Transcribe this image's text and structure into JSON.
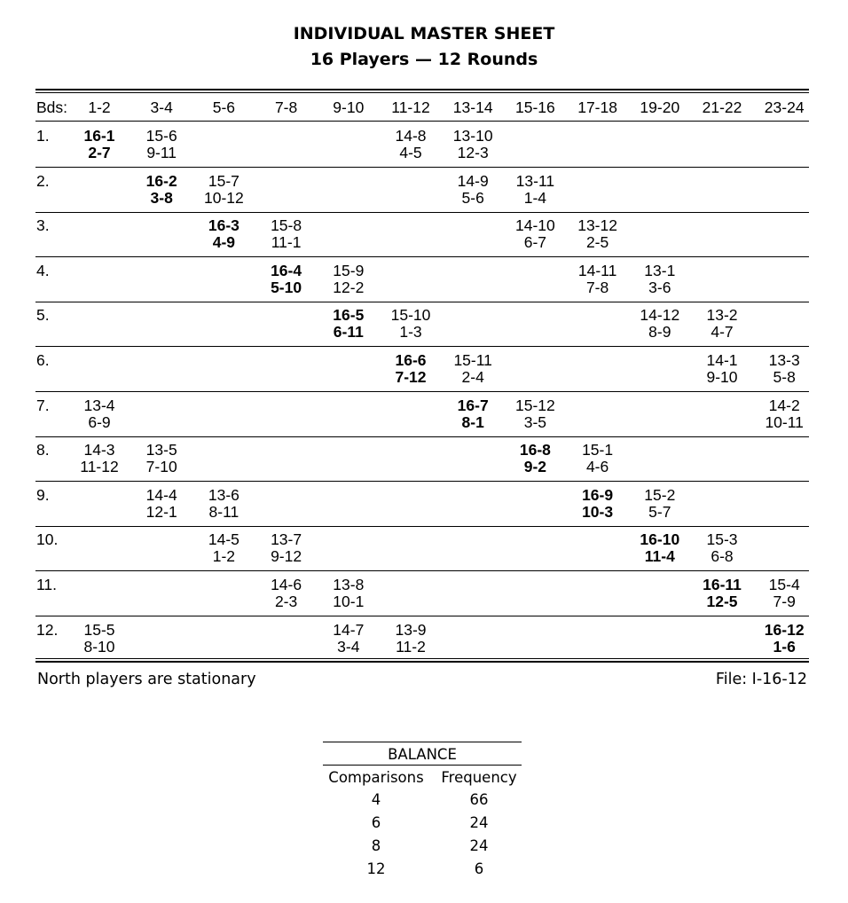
{
  "title": "INDIVIDUAL MASTER SHEET",
  "subtitle": "16 Players — 12 Rounds",
  "table": {
    "boards_label": "Bds:",
    "columns": [
      "1-2",
      "3-4",
      "5-6",
      "7-8",
      "9-10",
      "11-12",
      "13-14",
      "15-16",
      "17-18",
      "19-20",
      "21-22",
      "23-24"
    ],
    "rows": [
      {
        "label": "1.",
        "cells": [
          {
            "col": 0,
            "ns": "16-1",
            "ew": "2-7",
            "bold": true
          },
          {
            "col": 1,
            "ns": "15-6",
            "ew": "9-11"
          },
          {
            "col": 5,
            "ns": "14-8",
            "ew": "4-5"
          },
          {
            "col": 6,
            "ns": "13-10",
            "ew": "12-3"
          }
        ]
      },
      {
        "label": "2.",
        "cells": [
          {
            "col": 1,
            "ns": "16-2",
            "ew": "3-8",
            "bold": true
          },
          {
            "col": 2,
            "ns": "15-7",
            "ew": "10-12"
          },
          {
            "col": 6,
            "ns": "14-9",
            "ew": "5-6"
          },
          {
            "col": 7,
            "ns": "13-11",
            "ew": "1-4"
          }
        ]
      },
      {
        "label": "3.",
        "cells": [
          {
            "col": 2,
            "ns": "16-3",
            "ew": "4-9",
            "bold": true
          },
          {
            "col": 3,
            "ns": "15-8",
            "ew": "11-1"
          },
          {
            "col": 7,
            "ns": "14-10",
            "ew": "6-7"
          },
          {
            "col": 8,
            "ns": "13-12",
            "ew": "2-5"
          }
        ]
      },
      {
        "label": "4.",
        "cells": [
          {
            "col": 3,
            "ns": "16-4",
            "ew": "5-10",
            "bold": true
          },
          {
            "col": 4,
            "ns": "15-9",
            "ew": "12-2"
          },
          {
            "col": 8,
            "ns": "14-11",
            "ew": "7-8"
          },
          {
            "col": 9,
            "ns": "13-1",
            "ew": "3-6"
          }
        ]
      },
      {
        "label": "5.",
        "cells": [
          {
            "col": 4,
            "ns": "16-5",
            "ew": "6-11",
            "bold": true
          },
          {
            "col": 5,
            "ns": "15-10",
            "ew": "1-3"
          },
          {
            "col": 9,
            "ns": "14-12",
            "ew": "8-9"
          },
          {
            "col": 10,
            "ns": "13-2",
            "ew": "4-7"
          }
        ]
      },
      {
        "label": "6.",
        "cells": [
          {
            "col": 5,
            "ns": "16-6",
            "ew": "7-12",
            "bold": true
          },
          {
            "col": 6,
            "ns": "15-11",
            "ew": "2-4"
          },
          {
            "col": 10,
            "ns": "14-1",
            "ew": "9-10"
          },
          {
            "col": 11,
            "ns": "13-3",
            "ew": "5-8"
          }
        ]
      },
      {
        "label": "7.",
        "cells": [
          {
            "col": 0,
            "ns": "13-4",
            "ew": "6-9"
          },
          {
            "col": 6,
            "ns": "16-7",
            "ew": "8-1",
            "bold": true
          },
          {
            "col": 7,
            "ns": "15-12",
            "ew": "3-5"
          },
          {
            "col": 11,
            "ns": "14-2",
            "ew": "10-11"
          }
        ]
      },
      {
        "label": "8.",
        "cells": [
          {
            "col": 0,
            "ns": "14-3",
            "ew": "11-12"
          },
          {
            "col": 1,
            "ns": "13-5",
            "ew": "7-10"
          },
          {
            "col": 7,
            "ns": "16-8",
            "ew": "9-2",
            "bold": true
          },
          {
            "col": 8,
            "ns": "15-1",
            "ew": "4-6"
          }
        ]
      },
      {
        "label": "9.",
        "cells": [
          {
            "col": 1,
            "ns": "14-4",
            "ew": "12-1"
          },
          {
            "col": 2,
            "ns": "13-6",
            "ew": "8-11"
          },
          {
            "col": 8,
            "ns": "16-9",
            "ew": "10-3",
            "bold": true
          },
          {
            "col": 9,
            "ns": "15-2",
            "ew": "5-7"
          }
        ]
      },
      {
        "label": "10.",
        "cells": [
          {
            "col": 2,
            "ns": "14-5",
            "ew": "1-2"
          },
          {
            "col": 3,
            "ns": "13-7",
            "ew": "9-12"
          },
          {
            "col": 9,
            "ns": "16-10",
            "ew": "11-4",
            "bold": true
          },
          {
            "col": 10,
            "ns": "15-3",
            "ew": "6-8"
          }
        ]
      },
      {
        "label": "11.",
        "cells": [
          {
            "col": 3,
            "ns": "14-6",
            "ew": "2-3"
          },
          {
            "col": 4,
            "ns": "13-8",
            "ew": "10-1"
          },
          {
            "col": 10,
            "ns": "16-11",
            "ew": "12-5",
            "bold": true
          },
          {
            "col": 11,
            "ns": "15-4",
            "ew": "7-9"
          }
        ]
      },
      {
        "label": "12.",
        "cells": [
          {
            "col": 0,
            "ns": "15-5",
            "ew": "8-10"
          },
          {
            "col": 4,
            "ns": "14-7",
            "ew": "3-4"
          },
          {
            "col": 5,
            "ns": "13-9",
            "ew": "11-2"
          },
          {
            "col": 11,
            "ns": "16-12",
            "ew": "1-6",
            "bold": true
          }
        ]
      }
    ]
  },
  "footer": {
    "note": "North players are stationary",
    "file": "File: I-16-12"
  },
  "balance": {
    "title": "BALANCE",
    "headers": [
      "Comparisons",
      "Frequency"
    ],
    "rows": [
      [
        "4",
        "66"
      ],
      [
        "6",
        "24"
      ],
      [
        "8",
        "24"
      ],
      [
        "12",
        "6"
      ]
    ]
  }
}
